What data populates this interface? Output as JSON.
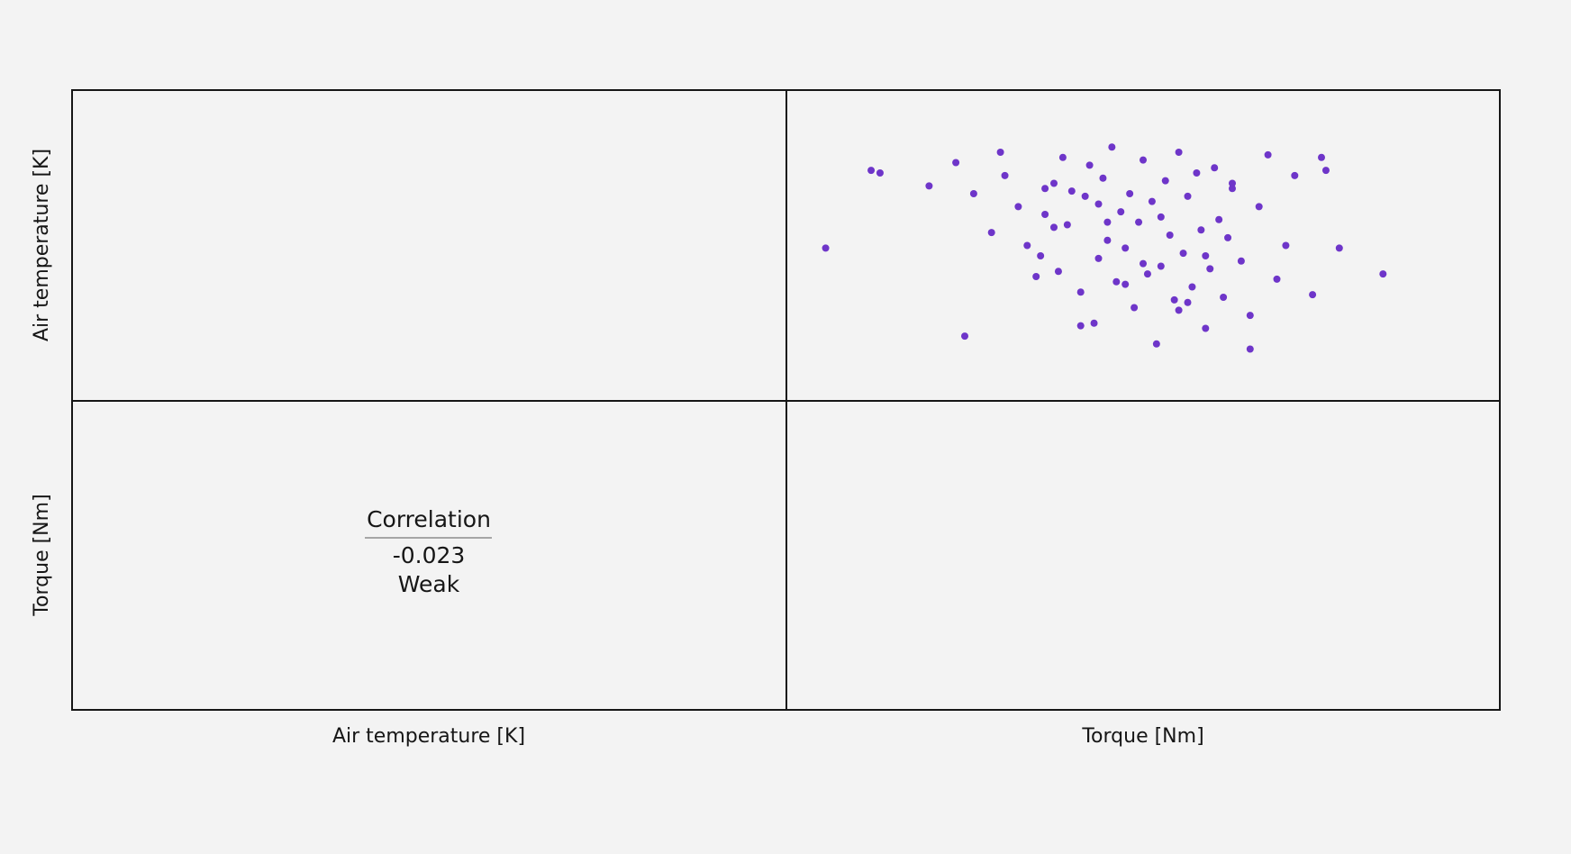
{
  "chart_data": {
    "type": "scatter_matrix",
    "variables": [
      "Air temperature [K]",
      "Torque [Nm]"
    ],
    "correlation": {
      "label": "Correlation",
      "value": -0.023,
      "strength": "Weak"
    },
    "color": "#6e35c9",
    "strength_color": "#3d6fb6",
    "xlim": [
      0,
      80
    ],
    "ylim": [
      294,
      306
    ],
    "x": [
      4.4,
      9.5,
      10.5,
      16,
      19,
      20,
      23,
      21,
      24,
      24.5,
      26,
      27,
      28,
      28.5,
      29,
      30,
      30.5,
      31,
      31.5,
      32,
      33,
      33.5,
      34,
      34.5,
      35,
      35.5,
      36,
      36.5,
      37,
      37.5,
      38,
      38.5,
      39,
      39.5,
      40,
      40.5,
      41,
      41.5,
      42,
      42.5,
      43,
      43.5,
      44,
      44.5,
      45,
      45.5,
      46,
      46.5,
      47,
      47.5,
      48,
      48.5,
      49,
      49.5,
      50,
      51,
      52,
      53,
      54,
      55,
      56,
      57,
      59,
      60,
      62,
      60.5,
      66.9,
      30,
      35,
      40,
      45,
      50,
      38,
      42,
      33,
      47,
      36,
      44,
      29,
      52
    ],
    "y": [
      299.9,
      302.9,
      302.8,
      302.3,
      303.2,
      296.5,
      300.5,
      302.0,
      303.6,
      302.7,
      301.5,
      300.0,
      298.8,
      299.6,
      301.2,
      302.4,
      299.0,
      303.4,
      300.8,
      302.1,
      298.2,
      301.9,
      303.1,
      297.0,
      299.5,
      302.6,
      300.2,
      303.8,
      298.6,
      301.3,
      299.9,
      302.0,
      297.6,
      300.9,
      303.3,
      298.9,
      301.7,
      296.2,
      299.2,
      302.5,
      300.4,
      297.9,
      303.6,
      299.7,
      301.9,
      298.4,
      302.8,
      300.6,
      296.8,
      299.1,
      303.0,
      301.0,
      298.0,
      300.3,
      302.2,
      299.4,
      297.3,
      301.5,
      303.5,
      298.7,
      300.0,
      302.7,
      298.1,
      303.4,
      299.9,
      302.9,
      298.9,
      300.7,
      301.6,
      299.3,
      297.8,
      302.4,
      298.5,
      301.1,
      296.9,
      299.6,
      300.9,
      297.5,
      302.2,
      296.0
    ]
  }
}
